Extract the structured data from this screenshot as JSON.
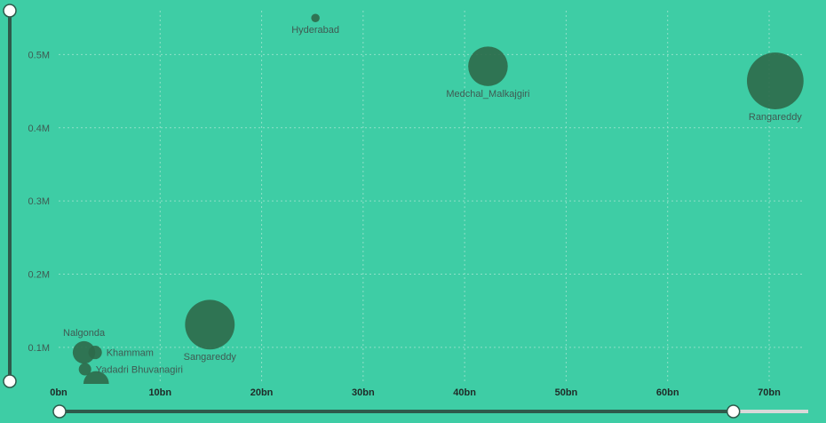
{
  "chart_data": {
    "type": "scatter",
    "title": "",
    "xlabel": "",
    "ylabel": "",
    "x_ticks": [
      "0bn",
      "10bn",
      "20bn",
      "30bn",
      "40bn",
      "50bn",
      "60bn",
      "70bn"
    ],
    "x_tick_values": [
      0,
      10,
      20,
      30,
      40,
      50,
      60,
      70
    ],
    "y_ticks": [
      "0.1M",
      "0.2M",
      "0.3M",
      "0.4M",
      "0.5M"
    ],
    "y_tick_values": [
      0.1,
      0.2,
      0.3,
      0.4,
      0.5
    ],
    "xlim": [
      0,
      73.5
    ],
    "ylim": [
      0.05,
      0.56
    ],
    "grid": true,
    "points": [
      {
        "name": "Hyderabad",
        "x": 25.3,
        "y": 0.55,
        "size": 0.4,
        "label_pos": "below"
      },
      {
        "name": "Medchal_Malkajgiri",
        "x": 42.3,
        "y": 0.484,
        "size": 3.5,
        "label_pos": "below"
      },
      {
        "name": "Rangareddy",
        "x": 70.6,
        "y": 0.464,
        "size": 5.2,
        "label_pos": "below"
      },
      {
        "name": "Sangareddy",
        "x": 14.9,
        "y": 0.131,
        "size": 4.5,
        "label_pos": "below"
      },
      {
        "name": "Nalgonda",
        "x": 2.5,
        "y": 0.093,
        "size": 1.8,
        "label_pos": "above"
      },
      {
        "name": "Khammam",
        "x": 3.6,
        "y": 0.093,
        "size": 0.9,
        "label_pos": "right"
      },
      {
        "name": "Yadadri Bhuvanagiri",
        "x": 2.6,
        "y": 0.07,
        "size": 0.8,
        "label_pos": "right"
      },
      {
        "name": "",
        "x": 3.7,
        "y": 0.05,
        "size": 2.1,
        "label_pos": "none"
      }
    ]
  },
  "x_range_slider": {
    "start": 0,
    "end": 0.9
  },
  "y_range_slider": {
    "start": 0,
    "end": 1
  },
  "colors": {
    "background": "#3ecda5",
    "bubble": "#2d6a4a",
    "slider": "#2e5a4b"
  }
}
